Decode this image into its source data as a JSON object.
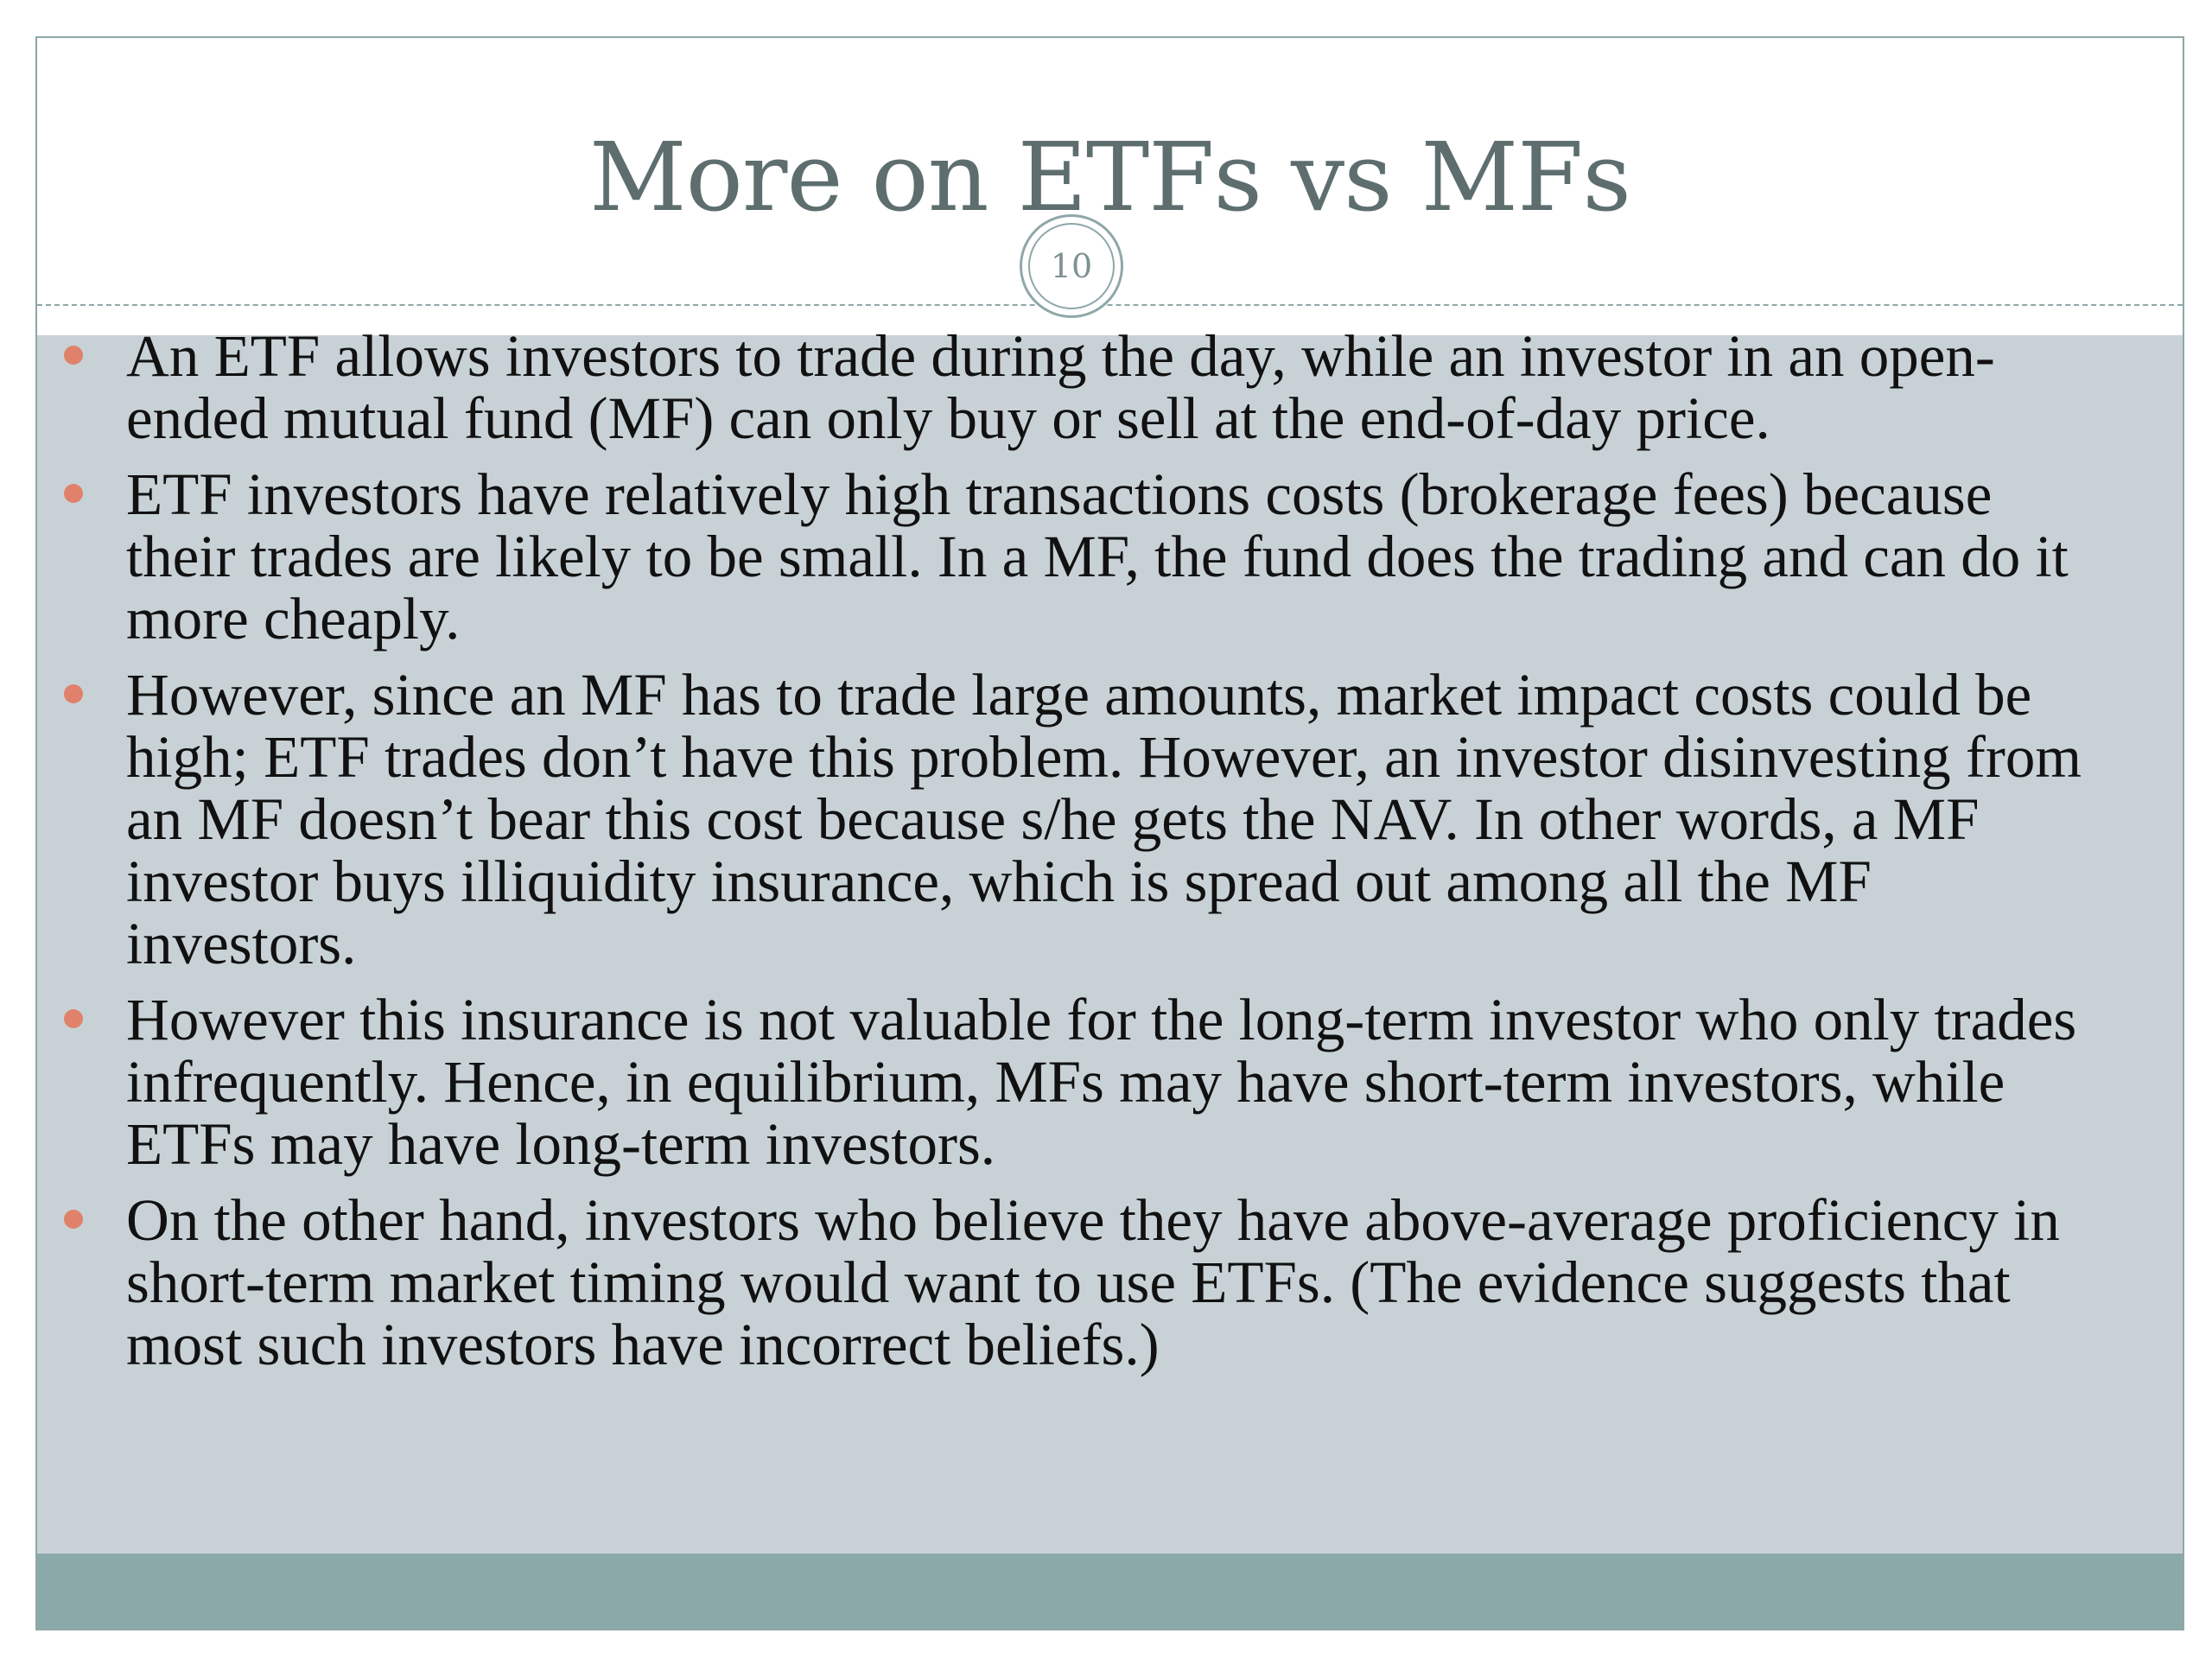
{
  "slide": {
    "title": "More on ETFs vs MFs",
    "page_number": "10",
    "bullets": [
      "An ETF allows investors to trade during the day, while an investor in an open-ended mutual fund (MF) can only buy or sell at the end-of-day price.",
      "ETF investors have relatively high transactions costs (brokerage fees) because their trades are likely to be small.  In a MF, the fund does the trading and can do it more cheaply.",
      "However, since an MF has to trade large amounts, market impact costs could be high; ETF trades don’t have this problem.  However, an investor disinvesting from an MF doesn’t bear this cost because s/he gets the NAV.  In other words, a MF investor buys illiquidity insurance, which is spread out among all the MF investors.",
      "However this insurance is not valuable for the long-term investor who only trades infrequently.  Hence, in equilibrium, MFs may have short-term investors, while ETFs may have long-term investors.",
      "On the other hand, investors who believe they have above-average proficiency in short-term market timing would want to use ETFs. (The evidence suggests that most such investors have incorrect beliefs.)"
    ]
  },
  "colors": {
    "title_text": "#5e6e6f",
    "content_background": "#c8d2d6",
    "footer_band": "#8ca9aa",
    "bullet_marker": "#e0826b",
    "border": "#8fa7a8"
  }
}
